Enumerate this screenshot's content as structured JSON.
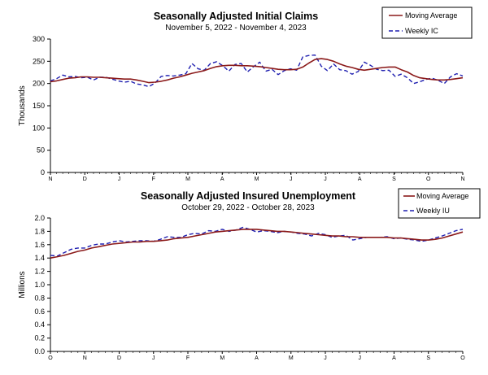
{
  "colors": {
    "moving_average": "#8b1a1a",
    "weekly": "#1f1fb0",
    "axis": "#000000"
  },
  "chart_data": [
    {
      "type": "line",
      "title": "Seasonally Adjusted Initial Claims",
      "subtitle": "November 5, 2022 - November 4, 2023",
      "ylabel": "Thousands",
      "ylim": [
        0,
        300
      ],
      "yticks": [
        "0",
        "50",
        "100",
        "150",
        "200",
        "250",
        "300"
      ],
      "ytick_values": [
        0,
        50,
        100,
        150,
        200,
        250,
        300
      ],
      "grid": false,
      "legend_position": "top-right",
      "month_labels": [
        "N",
        "D",
        "J",
        "F",
        "M",
        "A",
        "M",
        "J",
        "J",
        "A",
        "S",
        "O",
        "N"
      ],
      "series": [
        {
          "name": "Moving Average",
          "style": "solid",
          "values": [
            204,
            206,
            209,
            212,
            213,
            215,
            215,
            214,
            214,
            213,
            212,
            211,
            210,
            210,
            208,
            205,
            202,
            203,
            205,
            208,
            212,
            215,
            219,
            223,
            226,
            229,
            234,
            238,
            240,
            241,
            241,
            240,
            240,
            239,
            238,
            236,
            234,
            232,
            231,
            231,
            232,
            237,
            246,
            254,
            256,
            254,
            250,
            244,
            239,
            236,
            232,
            230,
            232,
            234,
            236,
            237,
            237,
            231,
            226,
            218,
            213,
            211,
            209,
            208,
            208,
            209,
            211,
            213
          ]
        },
        {
          "name": "Weekly IC",
          "style": "dashed",
          "values": [
            206,
            211,
            219,
            215,
            216,
            213,
            214,
            208,
            214,
            214,
            210,
            206,
            203,
            205,
            199,
            197,
            193,
            201,
            216,
            218,
            217,
            219,
            222,
            245,
            233,
            230,
            245,
            249,
            240,
            228,
            243,
            245,
            226,
            238,
            248,
            228,
            232,
            220,
            229,
            233,
            230,
            260,
            263,
            264,
            239,
            229,
            244,
            231,
            229,
            221,
            227,
            248,
            241,
            232,
            229,
            230,
            216,
            221,
            213,
            200,
            204,
            209,
            212,
            207,
            200,
            215,
            222,
            217
          ]
        }
      ]
    },
    {
      "type": "line",
      "title": "Seasonally Adjusted Insured Unemployment",
      "subtitle": "October 29, 2022 - October 28, 2023",
      "ylabel": "Millions",
      "ylim": [
        0,
        2
      ],
      "yticks": [
        "0.0",
        "0.2",
        "0.4",
        "0.6",
        "0.8",
        "1.0",
        "1.2",
        "1.4",
        "1.6",
        "1.8",
        "2.0"
      ],
      "ytick_values": [
        0,
        0.2,
        0.4,
        0.6,
        0.8,
        1.0,
        1.2,
        1.4,
        1.6,
        1.8,
        2.0
      ],
      "grid": false,
      "legend_position": "top-right",
      "month_labels": [
        "O",
        "N",
        "D",
        "J",
        "F",
        "M",
        "A",
        "M",
        "J",
        "J",
        "A",
        "S",
        "O"
      ],
      "series": [
        {
          "name": "Moving Average",
          "style": "solid",
          "values": [
            1.4,
            1.42,
            1.44,
            1.47,
            1.5,
            1.52,
            1.55,
            1.57,
            1.59,
            1.61,
            1.62,
            1.63,
            1.64,
            1.64,
            1.65,
            1.65,
            1.66,
            1.67,
            1.69,
            1.7,
            1.71,
            1.73,
            1.75,
            1.77,
            1.79,
            1.8,
            1.81,
            1.82,
            1.83,
            1.83,
            1.83,
            1.82,
            1.81,
            1.8,
            1.8,
            1.79,
            1.78,
            1.77,
            1.76,
            1.75,
            1.74,
            1.73,
            1.73,
            1.72,
            1.72,
            1.71,
            1.71,
            1.71,
            1.71,
            1.71,
            1.7,
            1.7,
            1.69,
            1.68,
            1.67,
            1.67,
            1.68,
            1.7,
            1.73,
            1.76,
            1.79
          ]
        },
        {
          "name": "Weekly IU",
          "style": "dashed",
          "values": [
            1.44,
            1.43,
            1.48,
            1.53,
            1.55,
            1.55,
            1.59,
            1.61,
            1.61,
            1.64,
            1.66,
            1.64,
            1.65,
            1.66,
            1.66,
            1.65,
            1.68,
            1.72,
            1.71,
            1.71,
            1.75,
            1.77,
            1.76,
            1.81,
            1.8,
            1.83,
            1.8,
            1.82,
            1.86,
            1.83,
            1.79,
            1.81,
            1.8,
            1.78,
            1.8,
            1.79,
            1.77,
            1.76,
            1.73,
            1.77,
            1.75,
            1.71,
            1.73,
            1.74,
            1.67,
            1.69,
            1.71,
            1.71,
            1.71,
            1.72,
            1.69,
            1.7,
            1.68,
            1.67,
            1.65,
            1.67,
            1.7,
            1.73,
            1.77,
            1.81,
            1.83
          ]
        }
      ]
    }
  ]
}
